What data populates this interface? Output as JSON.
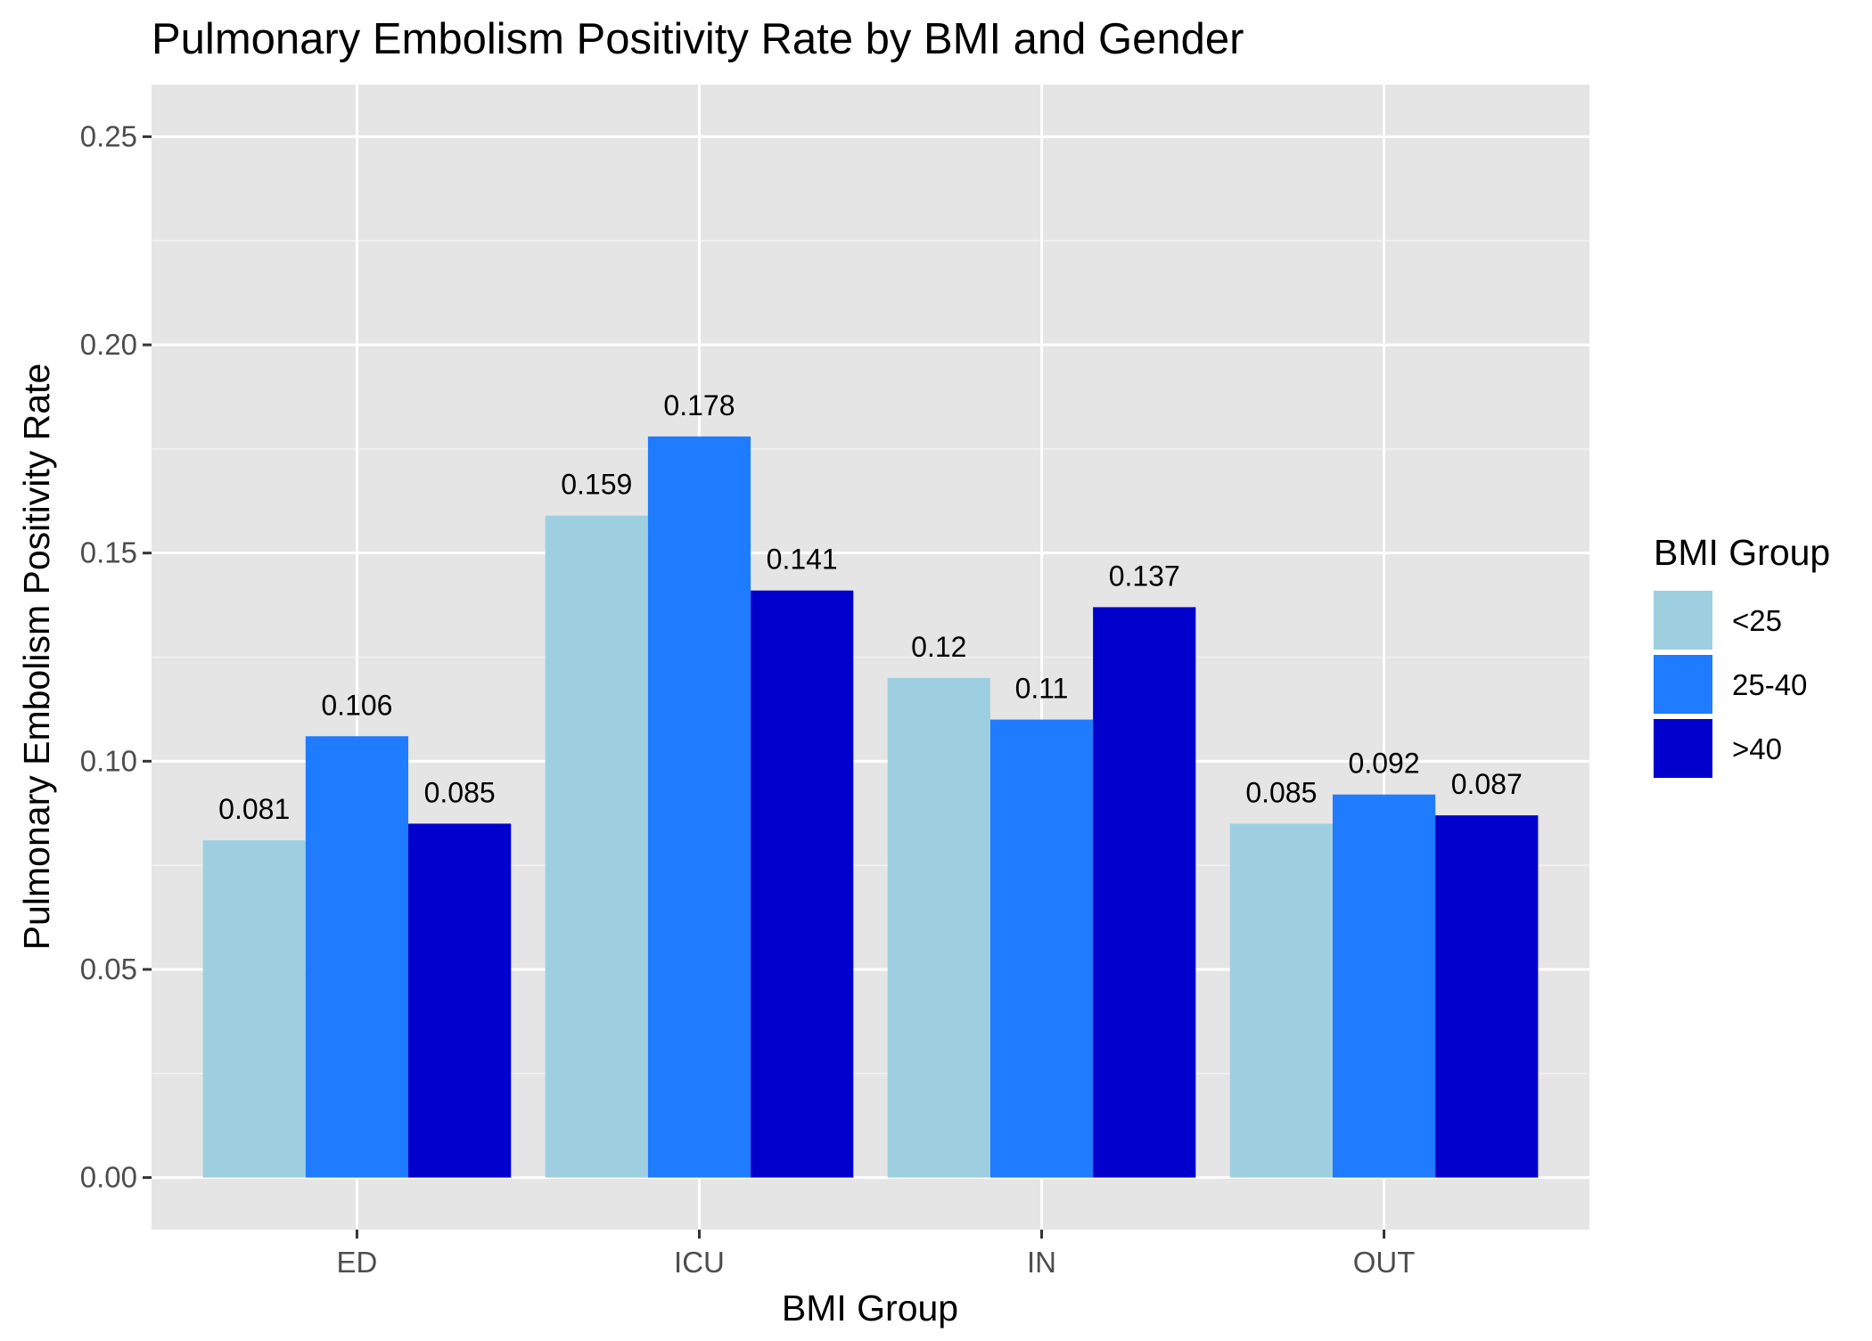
{
  "chart_data": {
    "type": "bar",
    "title": "Pulmonary Embolism Positivity Rate by BMI and Gender",
    "xlabel": "BMI Group",
    "ylabel": "Pulmonary Embolism Positivity Rate",
    "categories": [
      "ED",
      "ICU",
      "IN",
      "OUT"
    ],
    "series": [
      {
        "name": "<25",
        "color": "#9ecfe1",
        "values": [
          0.081,
          0.159,
          0.12,
          0.085
        ],
        "labels": [
          "0.081",
          "0.159",
          "0.12",
          "0.085"
        ]
      },
      {
        "name": "25-40",
        "color": "#1f7bff",
        "values": [
          0.106,
          0.178,
          0.11,
          0.092
        ],
        "labels": [
          "0.106",
          "0.178",
          "0.11",
          "0.092"
        ]
      },
      {
        "name": ">40",
        "color": "#0000cd",
        "values": [
          0.085,
          0.141,
          0.137,
          0.087
        ],
        "labels": [
          "0.085",
          "0.141",
          "0.137",
          "0.087"
        ]
      }
    ],
    "yticks": [
      0.0,
      0.05,
      0.1,
      0.15,
      0.2,
      0.25
    ],
    "ytick_labels": [
      "0.00",
      "0.05",
      "0.10",
      "0.15",
      "0.20",
      "0.25"
    ],
    "ylim": [
      -0.0125,
      0.2625
    ],
    "grid": true,
    "legend": {
      "title": "BMI Group",
      "position": "right"
    },
    "colors": {
      "panel_background": "#e5e5e5",
      "grid_major": "#ffffff",
      "grid_minor": "#f2f2f2"
    }
  }
}
